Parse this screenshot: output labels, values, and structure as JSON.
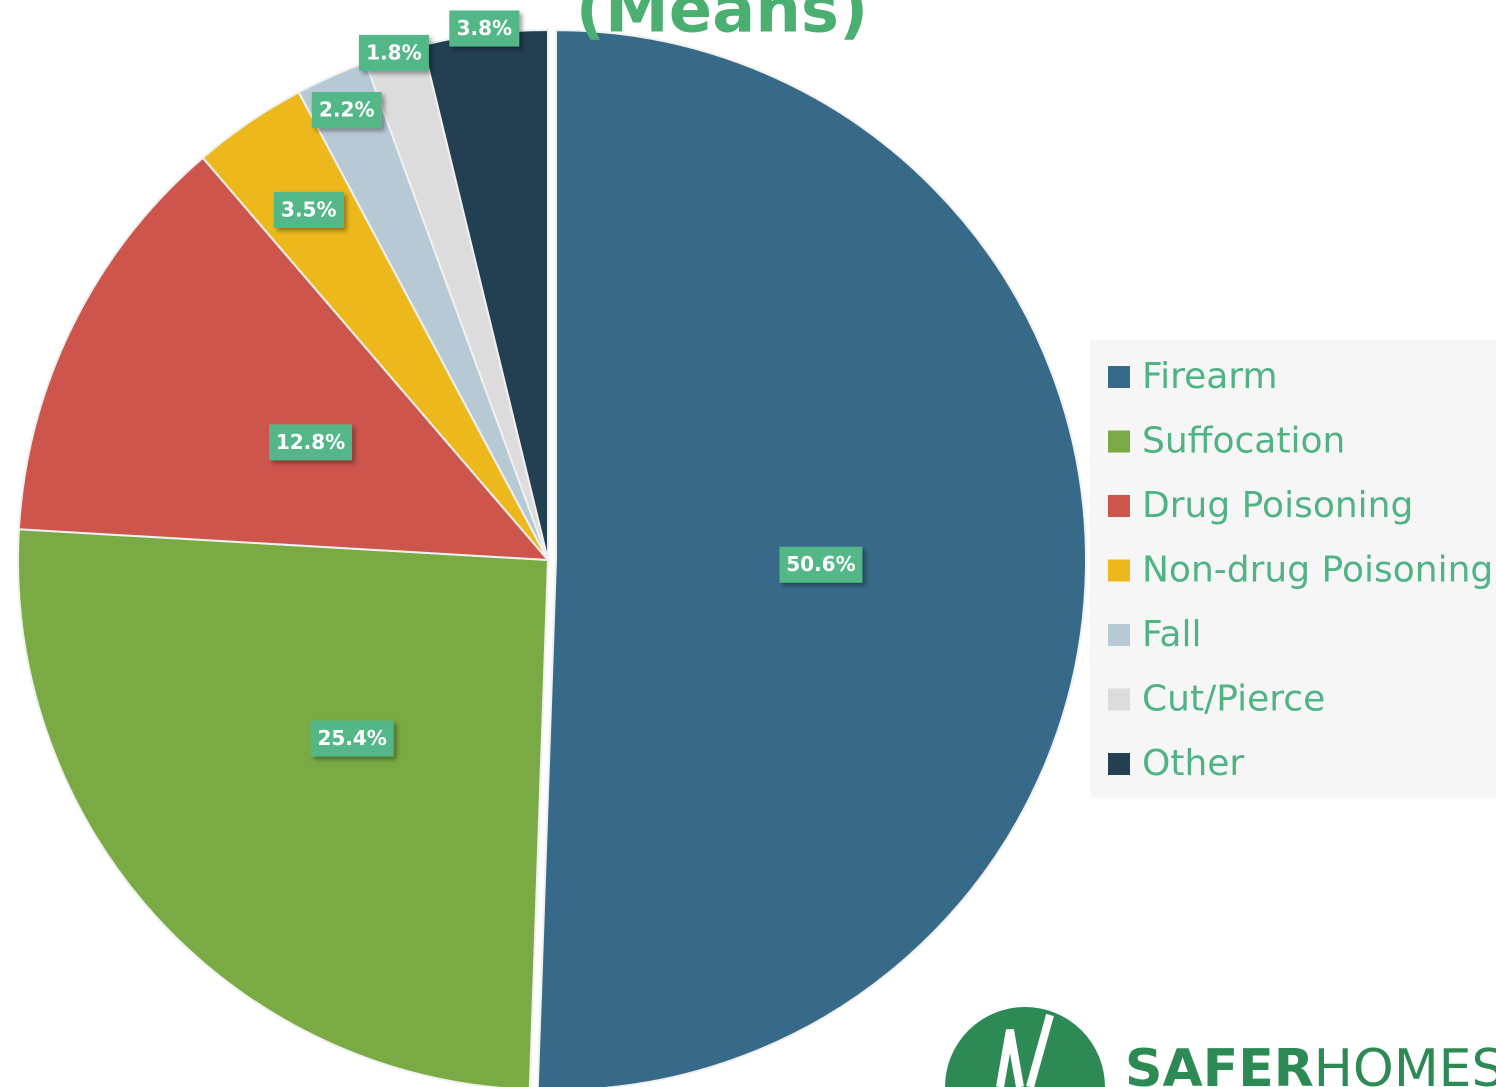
{
  "chart_data": {
    "type": "pie",
    "title": "(Means)",
    "categories": [
      "Firearm",
      "Suffocation",
      "Drug Poisoning",
      "Non-drug Poisoning",
      "Fall",
      "Cut/Pierce",
      "Other"
    ],
    "values": [
      50.6,
      25.4,
      12.8,
      3.5,
      2.2,
      1.8,
      3.8
    ],
    "value_labels": [
      "50.6%",
      "25.4%",
      "12.8%",
      "3.5%",
      "2.2%",
      "1.8%",
      "3.8%"
    ],
    "colors": [
      "#376a88",
      "#7aaa43",
      "#cd554c",
      "#ecb81c",
      "#b8c9d6",
      "#dcdcdc",
      "#233f52"
    ],
    "legend": "right"
  },
  "logo": [
    "SAFER",
    "HOMES"
  ]
}
